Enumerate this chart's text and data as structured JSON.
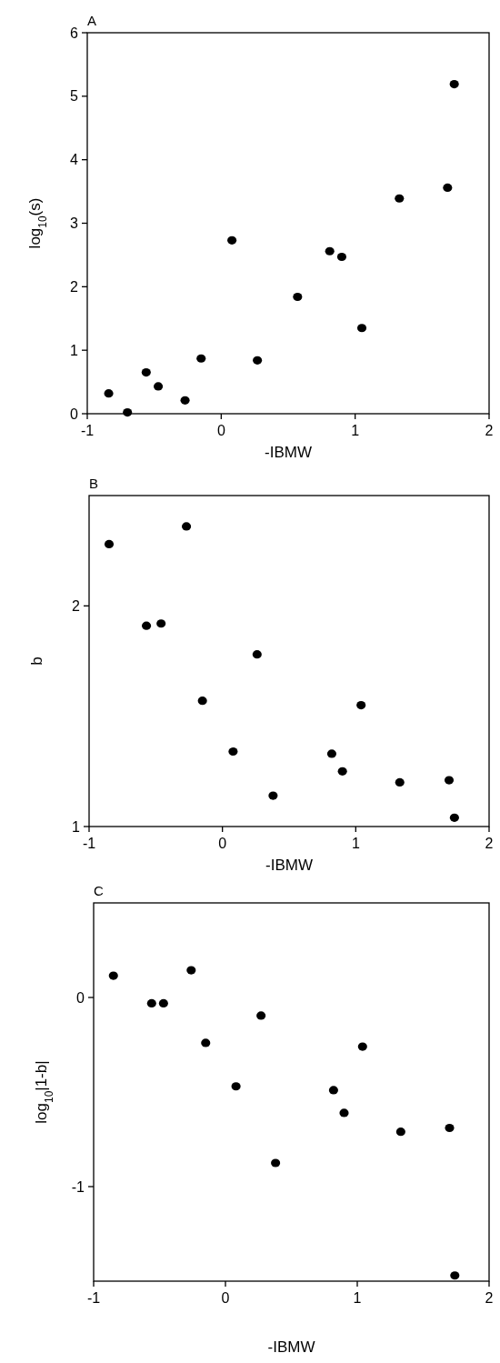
{
  "chart_data": [
    {
      "type": "scatter",
      "title": "A",
      "xlabel": "-IBMW",
      "ylabel": "log$_{10}$(s)",
      "xlim": [
        -1,
        2
      ],
      "xticks": [
        -1,
        0,
        1,
        2
      ],
      "ylim": [
        0,
        6
      ],
      "yticks": [
        0,
        1,
        2,
        3,
        4,
        5,
        6
      ],
      "marker": "circle",
      "grid": false,
      "series": [
        {
          "color": "#000000",
          "x": [
            -0.84,
            -0.7,
            -0.56,
            -0.47,
            -0.27,
            -0.15,
            0.08,
            0.27,
            0.57,
            0.81,
            0.9,
            1.05,
            1.33,
            1.69,
            1.74
          ],
          "values": [
            0.32,
            0.02,
            0.65,
            0.43,
            0.21,
            0.87,
            2.73,
            0.84,
            1.84,
            2.56,
            2.47,
            1.35,
            3.39,
            3.56,
            5.19
          ]
        }
      ]
    },
    {
      "type": "scatter",
      "title": "B",
      "xlabel": "-IBMW",
      "ylabel": "b",
      "xlim": [
        -1,
        2
      ],
      "xticks": [
        -1,
        0,
        1,
        2
      ],
      "ylim": [
        1,
        2.5
      ],
      "yticks": [
        1,
        2
      ],
      "marker": "circle",
      "grid": false,
      "series": [
        {
          "color": "#000000",
          "x": [
            -0.85,
            -0.27,
            -0.57,
            -0.46,
            0.26,
            -0.15,
            0.08,
            1.04,
            0.82,
            0.9,
            0.38,
            1.33,
            1.7,
            1.74
          ],
          "values": [
            2.28,
            2.36,
            1.91,
            1.92,
            1.78,
            1.57,
            1.34,
            1.55,
            1.33,
            1.25,
            1.14,
            1.2,
            1.21,
            1.04
          ]
        }
      ]
    },
    {
      "type": "scatter",
      "title": "C",
      "xlabel": "-IBMW",
      "ylabel": "log$_{10}$|1-b|",
      "xlim": [
        -1,
        2
      ],
      "xticks": [
        -1,
        0,
        1,
        2
      ],
      "ylim": [
        -1.5,
        0.5
      ],
      "yticks": [
        -1,
        0
      ],
      "marker": "circle",
      "grid": false,
      "series": [
        {
          "color": "#000000",
          "x": [
            -0.85,
            -0.26,
            -0.56,
            -0.47,
            0.27,
            -0.15,
            0.08,
            1.04,
            0.82,
            0.9,
            0.38,
            1.33,
            1.7,
            1.74
          ],
          "values": [
            0.115,
            0.144,
            -0.031,
            -0.031,
            -0.096,
            -0.24,
            -0.47,
            -0.26,
            -0.49,
            -0.61,
            -0.875,
            -0.71,
            -0.69,
            -1.47
          ]
        }
      ]
    }
  ]
}
